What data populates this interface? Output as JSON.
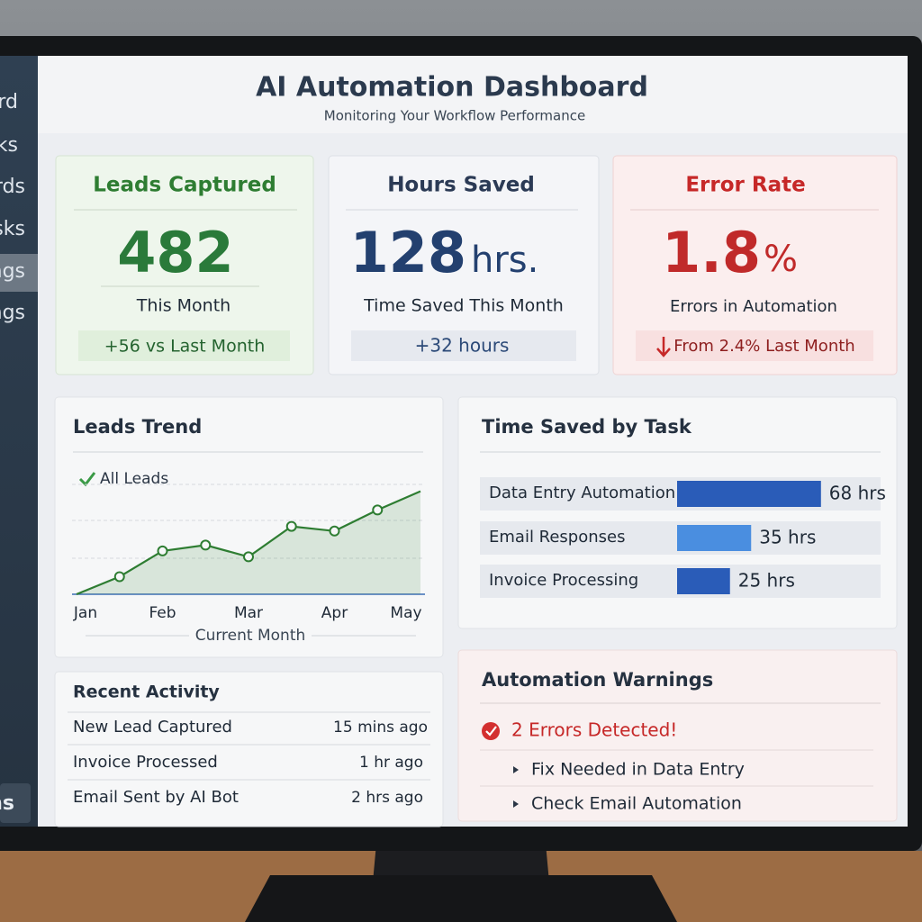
{
  "sidebar": {
    "items": [
      "rd",
      "ks",
      "rds",
      "sks",
      "ngs",
      "ngs"
    ],
    "footer": "ns"
  },
  "header": {
    "title": "AI Automation Dashboard",
    "subtitle": "Monitoring Your Workflow Performance"
  },
  "cards": [
    {
      "title": "Leads Captured",
      "value": "482",
      "caption": "This Month",
      "change": "+56 vs Last Month"
    },
    {
      "title": "Hours Saved",
      "value": "128",
      "unit": "hrs.",
      "caption": "Time Saved This Month",
      "change": "+32 hours"
    },
    {
      "title": "Error Rate",
      "value": "1.8",
      "unit": "%",
      "caption": "Errors in Automation",
      "change": "From 2.4% Last Month"
    }
  ],
  "chart_data": [
    {
      "type": "line",
      "title": "Leads Trend",
      "categories": [
        "Jan",
        null,
        "Feb",
        null,
        "Mar",
        null,
        "Apr",
        null,
        "May"
      ],
      "series": [
        {
          "name": "All Leads",
          "color": "#2e7d32",
          "values": [
            0,
            15,
            37,
            42,
            32,
            58,
            54,
            72,
            88
          ]
        }
      ],
      "xlabel": "Current Month",
      "ylim": [
        0,
        100
      ]
    },
    {
      "type": "bar",
      "orientation": "horizontal",
      "title": "Time Saved by Task",
      "categories": [
        "Data Entry Automation",
        "Email Responses",
        "Invoice Processing"
      ],
      "values": [
        68,
        35,
        25
      ],
      "value_labels": [
        "68 hrs",
        "35 hrs",
        "25 hrs"
      ],
      "colors": [
        "#2a5cb8",
        "#4a8ee0",
        "#2a5cb8"
      ],
      "xlim": [
        0,
        80
      ]
    }
  ],
  "recent_activity": {
    "title": "Recent Activity",
    "rows": [
      [
        "New Lead Captured",
        "15 mins ago"
      ],
      [
        "Invoice Processed",
        "1 hr ago"
      ],
      [
        "Email Sent by AI Bot",
        "2 hrs ago"
      ]
    ]
  },
  "warnings": {
    "title": "Automation Warnings",
    "alert": "2 Errors Detected!",
    "items": [
      "Fix Needed in Data Entry",
      "Check Email Automation"
    ]
  }
}
